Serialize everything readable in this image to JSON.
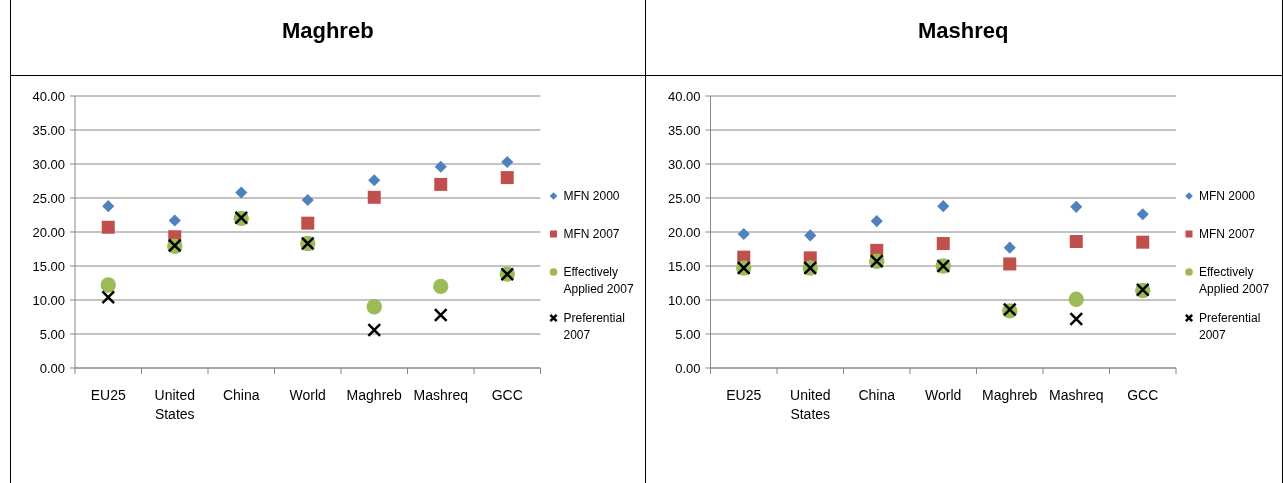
{
  "chart_data": [
    {
      "type": "scatter",
      "title": "Maghreb",
      "categories": [
        "EU25",
        "United States",
        "China",
        "World",
        "Maghreb",
        "Mashreq",
        "GCC"
      ],
      "ylim": [
        0,
        40
      ],
      "yticks": [
        {
          "value": 0,
          "label": "0.00"
        },
        {
          "value": 5,
          "label": "5.00"
        },
        {
          "value": 10,
          "label": "10.00"
        },
        {
          "value": 15,
          "label": "15.00"
        },
        {
          "value": 20,
          "label": "20.00"
        },
        {
          "value": 25,
          "label": "25.00"
        },
        {
          "value": 30,
          "label": "30.00"
        },
        {
          "value": 35,
          "label": "35.00"
        },
        {
          "value": 40,
          "label": "40.00"
        }
      ],
      "grid": "y",
      "legend": "right",
      "series": [
        {
          "name": "MFN 2000",
          "color": "#4f81bd",
          "marker": "diamond",
          "values": [
            23.8,
            21.7,
            25.8,
            24.7,
            27.6,
            29.6,
            30.3
          ]
        },
        {
          "name": "MFN 2007",
          "color": "#c0504d",
          "marker": "square",
          "values": [
            20.7,
            19.3,
            null,
            21.3,
            25.1,
            27.0,
            28.0
          ]
        },
        {
          "name": "Effectively Applied 2007",
          "color": "#9bbb59",
          "marker": "circle",
          "values": [
            12.2,
            17.9,
            22.0,
            18.3,
            9.0,
            12.0,
            13.8
          ]
        },
        {
          "name": "Preferential 2007",
          "color": "#000000",
          "marker": "cross",
          "values": [
            10.4,
            18.0,
            22.1,
            18.3,
            5.6,
            7.8,
            13.8
          ]
        }
      ]
    },
    {
      "type": "scatter",
      "title": "Mashreq",
      "categories": [
        "EU25",
        "United States",
        "China",
        "World",
        "Maghreb",
        "Mashreq",
        "GCC"
      ],
      "ylim": [
        0,
        40
      ],
      "yticks": [
        {
          "value": 0,
          "label": "0.00"
        },
        {
          "value": 5,
          "label": "5.00"
        },
        {
          "value": 10,
          "label": "10.00"
        },
        {
          "value": 15,
          "label": "15.00"
        },
        {
          "value": 20,
          "label": "20.00"
        },
        {
          "value": 25,
          "label": "25.00"
        },
        {
          "value": 30,
          "label": "30.00"
        },
        {
          "value": 35,
          "label": "35.00"
        },
        {
          "value": 40,
          "label": "40.00"
        }
      ],
      "grid": "y",
      "legend": "right",
      "series": [
        {
          "name": "MFN 2000",
          "color": "#4f81bd",
          "marker": "diamond",
          "values": [
            19.7,
            19.5,
            21.6,
            23.8,
            17.7,
            23.7,
            22.6
          ]
        },
        {
          "name": "MFN 2007",
          "color": "#c0504d",
          "marker": "square",
          "values": [
            16.3,
            16.2,
            17.3,
            18.3,
            15.3,
            18.6,
            18.5
          ]
        },
        {
          "name": "Effectively Applied 2007",
          "color": "#9bbb59",
          "marker": "circle",
          "values": [
            14.7,
            14.7,
            15.7,
            15.0,
            8.4,
            10.1,
            11.4
          ]
        },
        {
          "name": "Preferential 2007",
          "color": "#000000",
          "marker": "cross",
          "values": [
            14.7,
            14.7,
            15.7,
            15.0,
            8.6,
            7.2,
            11.5
          ]
        }
      ]
    }
  ]
}
